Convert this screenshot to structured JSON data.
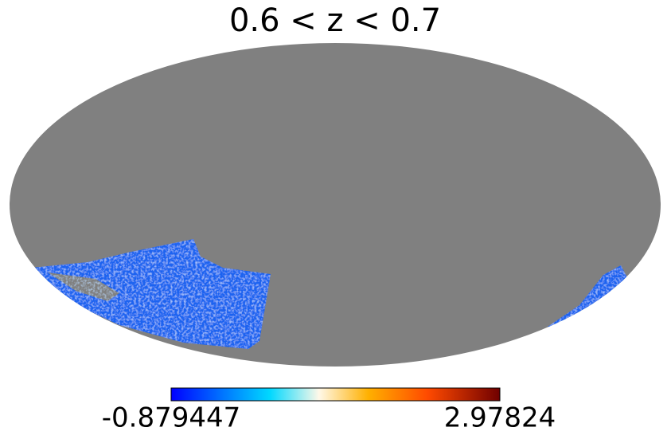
{
  "title": "0.6 < z < 0.7",
  "colorbar": {
    "min": -0.879447,
    "max": 2.97824
  }
}
